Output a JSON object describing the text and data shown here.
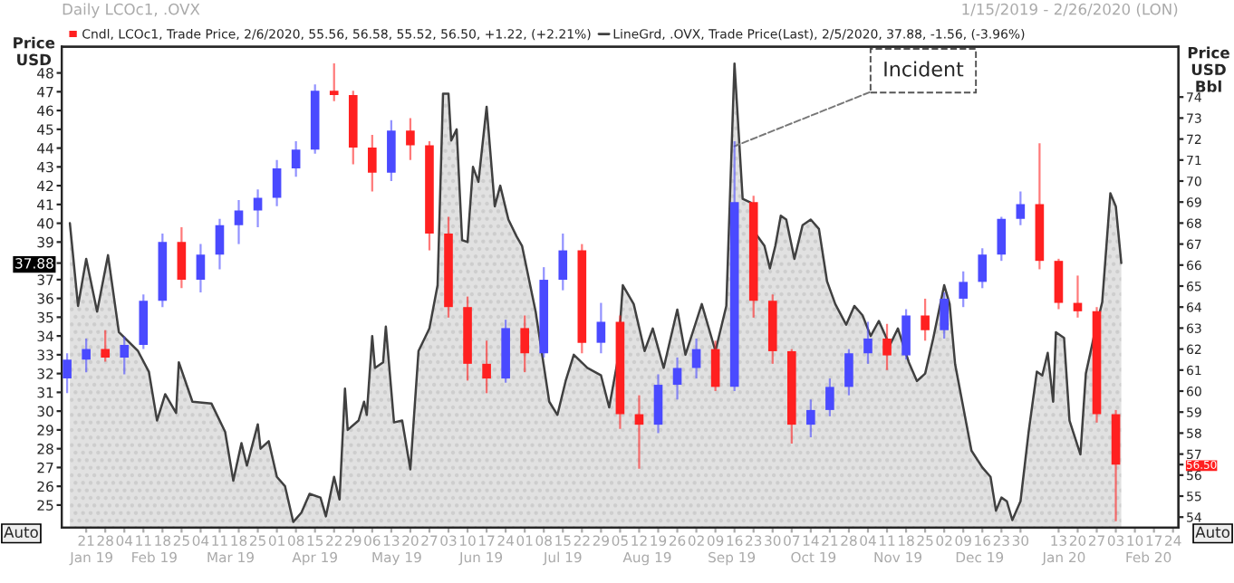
{
  "chart_data": {
    "type": "area",
    "title": "Daily LCOc1, .OVX",
    "subtitle": "1/15/2019 - 2/26/2020 (LON)",
    "ylabel": "Price\nUSD",
    "y2label": "Price\nUSD\nBbl",
    "annotations": [
      {
        "text": "Incident",
        "x": "2019-09-16",
        "y": 44.1
      },
      "Auto",
      "Auto"
    ],
    "legend": "top left",
    "xlim": [
      "2019-01-12",
      "2020-02-26"
    ],
    "x2lim": [
      "2019-01-12",
      "2020-02-26"
    ],
    "xticks": [
      {
        "value": "2019-01-21",
        "label": "21"
      },
      {
        "value": "2019-01-28",
        "label": "28"
      },
      {
        "value": "2019-02-04",
        "label": "04"
      },
      {
        "value": "2019-02-11",
        "label": "11"
      },
      {
        "value": "2019-02-18",
        "label": "18"
      },
      {
        "value": "2019-02-25",
        "label": "25"
      },
      {
        "value": "2019-03-04",
        "label": "04"
      },
      {
        "value": "2019-03-11",
        "label": "11"
      },
      {
        "value": "2019-03-18",
        "label": "18"
      },
      {
        "value": "2019-03-25",
        "label": "25"
      },
      {
        "value": "2019-04-01",
        "label": "01"
      },
      {
        "value": "2019-04-08",
        "label": "08"
      },
      {
        "value": "2019-04-15",
        "label": "15"
      },
      {
        "value": "2019-04-22",
        "label": "22"
      },
      {
        "value": "2019-04-29",
        "label": "29"
      },
      {
        "value": "2019-05-06",
        "label": "06"
      },
      {
        "value": "2019-05-13",
        "label": "13"
      },
      {
        "value": "2019-05-20",
        "label": "20"
      },
      {
        "value": "2019-05-27",
        "label": "27"
      },
      {
        "value": "2019-06-03",
        "label": "03"
      },
      {
        "value": "2019-06-10",
        "label": "10"
      },
      {
        "value": "2019-06-17",
        "label": "17"
      },
      {
        "value": "2019-06-24",
        "label": "24"
      },
      {
        "value": "2019-07-01",
        "label": "01"
      },
      {
        "value": "2019-07-08",
        "label": "08"
      },
      {
        "value": "2019-07-15",
        "label": "15"
      },
      {
        "value": "2019-07-22",
        "label": "22"
      },
      {
        "value": "2019-07-29",
        "label": "29"
      },
      {
        "value": "2019-08-05",
        "label": "05"
      },
      {
        "value": "2019-08-12",
        "label": "12"
      },
      {
        "value": "2019-08-19",
        "label": "19"
      },
      {
        "value": "2019-08-26",
        "label": "26"
      },
      {
        "value": "2019-09-02",
        "label": "02"
      },
      {
        "value": "2019-09-09",
        "label": "09"
      },
      {
        "value": "2019-09-16",
        "label": "16"
      },
      {
        "value": "2019-09-23",
        "label": "23"
      },
      {
        "value": "2019-09-30",
        "label": "30"
      },
      {
        "value": "2019-10-07",
        "label": "07"
      },
      {
        "value": "2019-10-14",
        "label": "14"
      },
      {
        "value": "2019-10-21",
        "label": "21"
      },
      {
        "value": "2019-10-28",
        "label": "28"
      },
      {
        "value": "2019-11-04",
        "label": "04"
      },
      {
        "value": "2019-11-11",
        "label": "11"
      },
      {
        "value": "2019-11-18",
        "label": "18"
      },
      {
        "value": "2019-11-25",
        "label": "25"
      },
      {
        "value": "2019-12-02",
        "label": "02"
      },
      {
        "value": "2019-12-09",
        "label": "09"
      },
      {
        "value": "2019-12-16",
        "label": "16"
      },
      {
        "value": "2019-12-23",
        "label": "23"
      },
      {
        "value": "2019-12-30",
        "label": "30"
      },
      {
        "value": "2020-01-13",
        "label": "13"
      },
      {
        "value": "2020-01-20",
        "label": "20"
      },
      {
        "value": "2020-01-27",
        "label": "27"
      },
      {
        "value": "2020-02-03",
        "label": "03"
      },
      {
        "value": "2020-02-10",
        "label": "10"
      },
      {
        "value": "2020-02-17",
        "label": "17"
      },
      {
        "value": "2020-02-24",
        "label": "24"
      }
    ],
    "x2ticks": [
      {
        "value": "2019-01-23",
        "label": "Jan 19"
      },
      {
        "value": "2019-02-15",
        "label": "Feb 19"
      },
      {
        "value": "2019-03-15",
        "label": "Mar 19"
      },
      {
        "value": "2019-04-15",
        "label": "Apr 19"
      },
      {
        "value": "2019-05-15",
        "label": "May 19"
      },
      {
        "value": "2019-06-15",
        "label": "Jun 19"
      },
      {
        "value": "2019-07-15",
        "label": "Jul 19"
      },
      {
        "value": "2019-08-15",
        "label": "Aug 19"
      },
      {
        "value": "2019-09-15",
        "label": "Sep 19"
      },
      {
        "value": "2019-10-15",
        "label": "Oct 19"
      },
      {
        "value": "2019-11-15",
        "label": "Nov 19"
      },
      {
        "value": "2019-12-15",
        "label": "Dec 19"
      },
      {
        "value": "2020-01-15",
        "label": "Jan 20"
      },
      {
        "value": "2020-02-15",
        "label": "Feb 20"
      }
    ],
    "ylim": [
      23.8,
      49.4
    ],
    "yticks": [
      25,
      26,
      27,
      28,
      29,
      30,
      31,
      32,
      33,
      34,
      35,
      36,
      37,
      {
        "value": 37.88,
        "label": "37.88"
      },
      39,
      40,
      41,
      42,
      43,
      44,
      45,
      46,
      47,
      48
    ],
    "y2lim": [
      53.5,
      76.4
    ],
    "y2ticks": [
      54,
      55,
      56,
      {
        "value": 56.5,
        "label": "56.50"
      },
      57,
      58,
      59,
      60,
      61,
      62,
      63,
      64,
      65,
      66,
      67,
      68,
      69,
      70,
      71,
      72,
      73,
      74
    ],
    "series": [
      {
        "name": "LineGrd, .OVX, Trade Price(Last), 2/5/2020, 37.88, -1.56, (-3.96%)",
        "color": "#404040",
        "x": [
          "2019-01-15",
          "2019-01-18",
          "2019-01-21",
          "2019-01-25",
          "2019-01-29",
          "2019-02-02",
          "2019-02-09",
          "2019-02-13",
          "2019-02-16",
          "2019-02-19",
          "2019-02-23",
          "2019-02-24",
          "2019-03-01",
          "2019-03-08",
          "2019-03-13",
          "2019-03-16",
          "2019-03-19",
          "2019-03-21",
          "2019-03-25",
          "2019-03-26",
          "2019-03-29",
          "2019-04-01",
          "2019-04-04",
          "2019-04-07",
          "2019-04-10",
          "2019-04-13",
          "2019-04-17",
          "2019-04-19",
          "2019-04-22",
          "2019-04-24",
          "2019-04-26",
          "2019-04-27",
          "2019-05-01",
          "2019-05-03",
          "2019-05-04",
          "2019-05-06",
          "2019-05-07",
          "2019-05-10",
          "2019-05-11",
          "2019-05-14",
          "2019-05-17",
          "2019-05-20",
          "2019-05-23",
          "2019-05-27",
          "2019-05-30",
          "2019-06-01",
          "2019-06-03",
          "2019-06-04",
          "2019-06-06",
          "2019-06-08",
          "2019-06-10",
          "2019-06-12",
          "2019-06-14",
          "2019-06-17",
          "2019-06-20",
          "2019-06-22",
          "2019-06-25",
          "2019-06-28",
          "2019-06-30",
          "2019-07-05",
          "2019-07-10",
          "2019-07-13",
          "2019-07-16",
          "2019-07-19",
          "2019-07-24",
          "2019-07-29",
          "2019-08-01",
          "2019-08-04",
          "2019-08-06",
          "2019-08-10",
          "2019-08-14",
          "2019-08-17",
          "2019-08-21",
          "2019-08-26",
          "2019-08-29",
          "2019-09-04",
          "2019-09-09",
          "2019-09-13",
          "2019-09-16",
          "2019-09-19",
          "2019-09-22",
          "2019-09-24",
          "2019-09-27",
          "2019-09-29",
          "2019-10-01",
          "2019-10-03",
          "2019-10-05",
          "2019-10-08",
          "2019-10-11",
          "2019-10-14",
          "2019-10-17",
          "2019-10-20",
          "2019-10-23",
          "2019-10-27",
          "2019-10-30",
          "2019-11-02",
          "2019-11-05",
          "2019-11-08",
          "2019-11-12",
          "2019-11-15",
          "2019-11-19",
          "2019-11-22",
          "2019-11-25",
          "2019-11-28",
          "2019-12-02",
          "2019-12-04",
          "2019-12-06",
          "2019-12-09",
          "2019-12-12",
          "2019-12-16",
          "2019-12-19",
          "2019-12-21",
          "2019-12-23",
          "2019-12-25",
          "2019-12-27",
          "2019-12-30",
          "2020-01-02",
          "2020-01-05",
          "2020-01-07",
          "2020-01-09",
          "2020-01-11",
          "2020-01-12",
          "2020-01-15",
          "2020-01-17",
          "2020-01-21",
          "2020-01-23",
          "2020-01-26",
          "2020-01-29",
          "2020-02-01",
          "2020-02-03",
          "2020-02-05"
        ],
        "values": [
          40.0,
          35.6,
          38.1,
          35.3,
          38.3,
          34.2,
          33.2,
          32.1,
          29.5,
          30.9,
          29.9,
          32.6,
          30.5,
          30.4,
          28.9,
          26.3,
          28.3,
          27.1,
          29.3,
          28.0,
          28.4,
          26.5,
          26.0,
          24.1,
          24.6,
          25.6,
          25.4,
          24.4,
          26.5,
          25.3,
          31.2,
          29.0,
          29.5,
          30.5,
          29.8,
          34.0,
          32.3,
          32.6,
          34.5,
          29.4,
          29.5,
          26.9,
          33.2,
          34.4,
          36.7,
          46.9,
          46.9,
          44.4,
          45.0,
          39.1,
          39.0,
          43.0,
          42.2,
          46.2,
          40.9,
          42.0,
          40.2,
          39.3,
          38.8,
          35.3,
          30.5,
          29.8,
          31.6,
          33.0,
          32.3,
          31.9,
          30.2,
          32.6,
          36.7,
          35.7,
          33.2,
          34.4,
          32.3,
          35.4,
          33.0,
          35.7,
          33.2,
          35.6,
          48.5,
          41.3,
          41.1,
          39.4,
          38.8,
          37.6,
          38.8,
          40.4,
          40.2,
          38.1,
          39.9,
          40.2,
          39.7,
          36.9,
          35.7,
          34.6,
          35.6,
          35.1,
          34.0,
          34.8,
          33.5,
          34.4,
          32.6,
          31.6,
          32.0,
          33.9,
          36.7,
          35.7,
          32.5,
          30.2,
          27.9,
          27.0,
          26.5,
          24.7,
          25.4,
          25.2,
          24.2,
          25.2,
          28.9,
          32.1,
          31.9,
          33.1,
          30.5,
          34.2,
          33.9,
          29.5,
          27.7,
          32.0,
          34.0,
          35.8,
          41.6,
          40.9,
          37.88
        ]
      },
      {
        "type": "candlestick",
        "axis": "y2",
        "name": "Cndl, LCOc1, Trade Price, 2/6/2020, 55.56, 56.58, 55.52, 56.50, +1.22, (+2.21%)",
        "color": "#ff2020",
        "x": [
          "2019-01-14",
          "2019-01-21",
          "2019-01-28",
          "2019-02-04",
          "2019-02-11",
          "2019-02-18",
          "2019-02-25",
          "2019-03-04",
          "2019-03-11",
          "2019-03-18",
          "2019-03-25",
          "2019-04-01",
          "2019-04-08",
          "2019-04-15",
          "2019-04-22",
          "2019-04-29",
          "2019-05-06",
          "2019-05-13",
          "2019-05-20",
          "2019-05-27",
          "2019-06-03",
          "2019-06-10",
          "2019-06-17",
          "2019-06-24",
          "2019-07-01",
          "2019-07-08",
          "2019-07-15",
          "2019-07-22",
          "2019-07-29",
          "2019-08-05",
          "2019-08-12",
          "2019-08-19",
          "2019-08-26",
          "2019-09-02",
          "2019-09-09",
          "2019-09-16",
          "2019-09-23",
          "2019-09-30",
          "2019-10-07",
          "2019-10-14",
          "2019-10-21",
          "2019-10-28",
          "2019-11-04",
          "2019-11-11",
          "2019-11-18",
          "2019-11-25",
          "2019-12-02",
          "2019-12-09",
          "2019-12-16",
          "2019-12-23",
          "2019-12-30",
          "2020-01-06",
          "2020-01-13",
          "2020-01-20",
          "2020-01-27",
          "2020-02-03"
        ],
        "ohlc": [
          [
            60.6,
            61.8,
            59.9,
            61.5
          ],
          [
            61.5,
            62.5,
            60.9,
            62.0
          ],
          [
            62.0,
            62.9,
            61.4,
            61.6
          ],
          [
            61.6,
            62.6,
            60.8,
            62.2
          ],
          [
            62.2,
            64.6,
            62.0,
            64.3
          ],
          [
            64.3,
            67.5,
            64.0,
            67.1
          ],
          [
            67.1,
            67.8,
            64.9,
            65.3
          ],
          [
            65.3,
            67.0,
            64.7,
            66.5
          ],
          [
            66.5,
            68.2,
            65.8,
            67.9
          ],
          [
            67.9,
            69.1,
            67.0,
            68.6
          ],
          [
            68.6,
            69.6,
            67.8,
            69.2
          ],
          [
            69.2,
            71.0,
            68.8,
            70.6
          ],
          [
            70.6,
            71.9,
            70.2,
            71.5
          ],
          [
            71.5,
            74.6,
            71.3,
            74.3
          ],
          [
            74.3,
            75.6,
            73.8,
            74.1
          ],
          [
            74.1,
            74.3,
            70.8,
            71.6
          ],
          [
            71.6,
            72.2,
            69.5,
            70.4
          ],
          [
            70.4,
            72.9,
            70.0,
            72.4
          ],
          [
            72.4,
            73.0,
            71.0,
            71.7
          ],
          [
            71.7,
            71.9,
            66.7,
            67.5
          ],
          [
            67.5,
            68.3,
            63.5,
            64.0
          ],
          [
            64.0,
            64.5,
            60.5,
            61.3
          ],
          [
            61.3,
            62.4,
            59.9,
            60.6
          ],
          [
            60.6,
            63.4,
            60.4,
            63.0
          ],
          [
            63.0,
            63.6,
            60.9,
            61.8
          ],
          [
            61.8,
            65.9,
            61.6,
            65.3
          ],
          [
            65.3,
            67.5,
            64.8,
            66.7
          ],
          [
            66.7,
            67.0,
            61.8,
            62.3
          ],
          [
            62.3,
            64.2,
            61.8,
            63.3
          ],
          [
            63.3,
            63.6,
            58.2,
            58.9
          ],
          [
            58.9,
            59.8,
            56.3,
            58.4
          ],
          [
            58.4,
            60.8,
            58.0,
            60.3
          ],
          [
            60.3,
            61.6,
            59.6,
            61.1
          ],
          [
            61.1,
            62.5,
            60.6,
            62.0
          ],
          [
            62.0,
            62.4,
            60.0,
            60.2
          ],
          [
            60.2,
            71.9,
            60.0,
            69.0
          ],
          [
            69.0,
            69.3,
            63.5,
            64.3
          ],
          [
            64.3,
            64.6,
            61.3,
            61.9
          ],
          [
            61.9,
            62.0,
            57.5,
            58.4
          ],
          [
            58.4,
            59.6,
            57.8,
            59.1
          ],
          [
            59.1,
            60.6,
            58.8,
            60.2
          ],
          [
            60.2,
            62.0,
            59.8,
            61.8
          ],
          [
            61.8,
            63.3,
            61.3,
            62.5
          ],
          [
            62.5,
            63.2,
            61.0,
            61.7
          ],
          [
            61.7,
            63.9,
            61.5,
            63.6
          ],
          [
            63.6,
            64.4,
            62.4,
            62.9
          ],
          [
            62.9,
            64.7,
            62.5,
            64.4
          ],
          [
            64.4,
            65.7,
            64.0,
            65.2
          ],
          [
            65.2,
            66.8,
            64.9,
            66.5
          ],
          [
            66.5,
            68.3,
            66.2,
            68.2
          ],
          [
            68.2,
            69.5,
            67.9,
            68.9
          ],
          [
            68.9,
            71.8,
            65.8,
            66.2
          ],
          [
            66.2,
            66.3,
            63.9,
            64.2
          ],
          [
            64.2,
            65.5,
            63.5,
            63.8
          ],
          [
            63.8,
            64.0,
            58.5,
            58.9
          ],
          [
            58.9,
            59.1,
            53.8,
            56.5
          ]
        ],
        "colors": [
          "#4a4aff",
          "#4a4aff",
          "#ff2020",
          "#4a4aff",
          "#4a4aff",
          "#4a4aff",
          "#ff2020",
          "#4a4aff",
          "#4a4aff",
          "#4a4aff",
          "#4a4aff",
          "#4a4aff",
          "#4a4aff",
          "#4a4aff",
          "#ff2020",
          "#ff2020",
          "#ff2020",
          "#4a4aff",
          "#ff2020",
          "#ff2020",
          "#ff2020",
          "#ff2020",
          "#ff2020",
          "#4a4aff",
          "#ff2020",
          "#4a4aff",
          "#4a4aff",
          "#ff2020",
          "#4a4aff",
          "#ff2020",
          "#ff2020",
          "#4a4aff",
          "#4a4aff",
          "#4a4aff",
          "#ff2020",
          "#4a4aff",
          "#ff2020",
          "#ff2020",
          "#ff2020",
          "#4a4aff",
          "#4a4aff",
          "#4a4aff",
          "#4a4aff",
          "#ff2020",
          "#4a4aff",
          "#ff2020",
          "#4a4aff",
          "#4a4aff",
          "#4a4aff",
          "#4a4aff",
          "#4a4aff",
          "#ff2020",
          "#ff2020",
          "#ff2020",
          "#ff2020",
          "#ff2020"
        ]
      }
    ]
  }
}
